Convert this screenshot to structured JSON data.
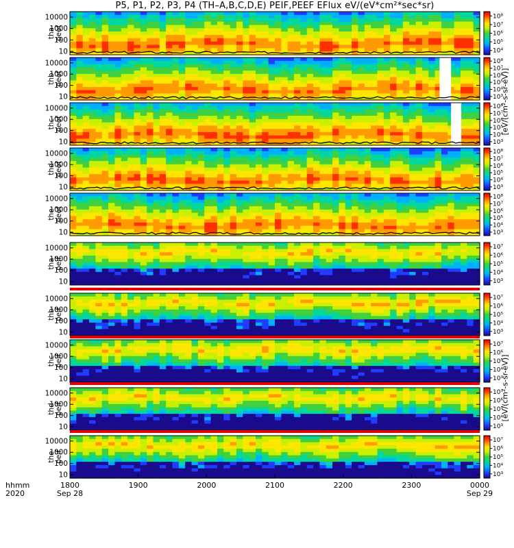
{
  "title": "P5, P1, P2, P3, P4 (TH–A,B,C,D,E) PEIF,PEEF EFlux eV/(eV*cm²*sec*sr)",
  "units_label_upper": "[eV/(cm²-s-sr-eV)]",
  "units_label_lower": "[eV/(cm²-s-sr-eV)]",
  "colors": {
    "colormap": [
      "#1a0a8c",
      "#1f3cff",
      "#00b0ff",
      "#00d8a0",
      "#40d040",
      "#c8f000",
      "#ffe600",
      "#ff9a00",
      "#ff3000",
      "#e00000"
    ],
    "gap": "#ffffff",
    "marker_line": "#000000",
    "separator_band": "#e00000"
  },
  "chart_data": {
    "type": "heatmap",
    "x_axis": {
      "row_label_1": "hhmm",
      "row_label_2": "2020",
      "range": [
        "1800",
        "0000"
      ],
      "ticks": [
        "1800",
        "1900",
        "2000",
        "2100",
        "2200",
        "2300",
        "0000"
      ],
      "date_labels": {
        "1800": "Sep 28",
        "0000": "Sep 29"
      }
    },
    "y_axis_ticks": [
      "10",
      "100",
      "1000",
      "10000"
    ],
    "y_range_eV": [
      5,
      30000
    ],
    "y_scale": "log",
    "panels": [
      {
        "probe": "tha",
        "product": "peef",
        "ylabel_1": "tha",
        "ylabel_2": "peef",
        "colorbar_ticks": [
          "10⁴",
          "10⁵",
          "10⁶",
          "10⁷",
          "10⁸"
        ]
      },
      {
        "probe": "thb",
        "product": "peef",
        "ylabel_1": "thb",
        "ylabel_2": "peef",
        "colorbar_ticks": [
          "10³",
          "10⁴",
          "10⁵",
          "10⁶",
          "10⁷",
          "10⁸"
        ]
      },
      {
        "probe": "thc",
        "product": "peef",
        "ylabel_1": "thc",
        "ylabel_2": "peef",
        "colorbar_ticks": [
          "10³",
          "10⁴",
          "10⁵",
          "10⁶",
          "10⁷",
          "10⁸"
        ]
      },
      {
        "probe": "thd",
        "product": "peef",
        "ylabel_1": "thd",
        "ylabel_2": "peef",
        "colorbar_ticks": [
          "10³",
          "10⁴",
          "10⁵",
          "10⁶",
          "10⁷",
          "10⁸"
        ]
      },
      {
        "probe": "the",
        "product": "peef",
        "ylabel_1": "the",
        "ylabel_2": "peef",
        "colorbar_ticks": [
          "10³",
          "10⁴",
          "10⁵",
          "10⁶",
          "10⁷",
          "10⁸"
        ]
      },
      {
        "probe": "tha",
        "product": "peif",
        "ylabel_1": "tha",
        "ylabel_2": "peif",
        "colorbar_ticks": [
          "10³",
          "10⁴",
          "10⁵",
          "10⁶",
          "10⁷"
        ]
      },
      {
        "probe": "thb",
        "product": "peif",
        "ylabel_1": "thb",
        "ylabel_2": "peif",
        "colorbar_ticks": [
          "10³",
          "10⁴",
          "10⁵",
          "10⁶",
          "10⁷"
        ]
      },
      {
        "probe": "thc",
        "product": "peif",
        "ylabel_1": "thc",
        "ylabel_2": "peif",
        "colorbar_ticks": [
          "10³",
          "10⁴",
          "10⁵",
          "10⁶",
          "10⁷"
        ]
      },
      {
        "probe": "thd",
        "product": "peif",
        "ylabel_1": "thd",
        "ylabel_2": "peif",
        "colorbar_ticks": [
          "10³",
          "10⁴",
          "10⁵",
          "10⁶",
          "10⁷"
        ]
      },
      {
        "probe": "the",
        "product": "peif",
        "ylabel_1": "the",
        "ylabel_2": "peif",
        "colorbar_ticks": [
          "10³",
          "10⁴",
          "10⁵",
          "10⁶",
          "10⁷"
        ]
      }
    ]
  }
}
